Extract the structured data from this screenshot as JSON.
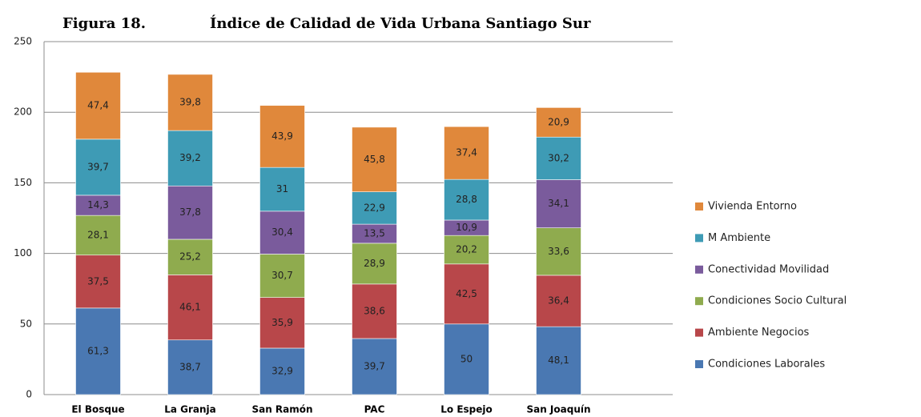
{
  "chart_data": {
    "type": "stacked_bar",
    "figure_label": "Figura 18.",
    "title": "Índice de Calidad de Vida Urbana Santiago Sur",
    "categories": [
      "El Bosque",
      "La Granja",
      "San Ramón",
      "PAC",
      "Lo Espejo",
      "San Joaquín"
    ],
    "series": [
      {
        "name": "Condiciones Laborales",
        "color": "#4a78b2",
        "values": [
          61.3,
          38.7,
          32.9,
          39.7,
          50,
          48.1
        ],
        "value_labels": [
          "61,3",
          "38,7",
          "32,9",
          "39,7",
          "50",
          "48,1"
        ]
      },
      {
        "name": "Ambiente Negocios",
        "color": "#b8474a",
        "values": [
          37.5,
          46.1,
          35.9,
          38.6,
          42.5,
          36.4
        ],
        "value_labels": [
          "37,5",
          "46,1",
          "35,9",
          "38,6",
          "42,5",
          "36,4"
        ]
      },
      {
        "name": "Condiciones Socio Cultural",
        "color": "#8fab4e",
        "values": [
          28.1,
          25.2,
          30.7,
          28.9,
          20.2,
          33.6
        ],
        "value_labels": [
          "28,1",
          "25,2",
          "30,7",
          "28,9",
          "20,2",
          "33,6"
        ]
      },
      {
        "name": "Conectividad Movilidad",
        "color": "#7a5b9c",
        "values": [
          14.3,
          37.8,
          30.4,
          13.5,
          10.9,
          34.1
        ],
        "value_labels": [
          "14,3",
          "37,8",
          "30,4",
          "13,5",
          "10,9",
          "34,1"
        ]
      },
      {
        "name": "M Ambiente",
        "color": "#3e9bb5",
        "values": [
          39.7,
          39.2,
          31,
          22.9,
          28.8,
          30.2
        ],
        "value_labels": [
          "39,7",
          "39,2",
          "31",
          "22,9",
          "28,8",
          "30,2"
        ]
      },
      {
        "name": "Vivienda Entorno",
        "color": "#e0883b",
        "values": [
          47.4,
          39.8,
          43.9,
          45.8,
          37.4,
          20.9
        ],
        "value_labels": [
          "47,4",
          "39,8",
          "43,9",
          "45,8",
          "37,4",
          "20,9"
        ]
      }
    ],
    "ylim": [
      0,
      250
    ],
    "yticks": [
      0,
      50,
      100,
      150,
      200,
      250
    ],
    "grid": true,
    "legend": "right"
  }
}
